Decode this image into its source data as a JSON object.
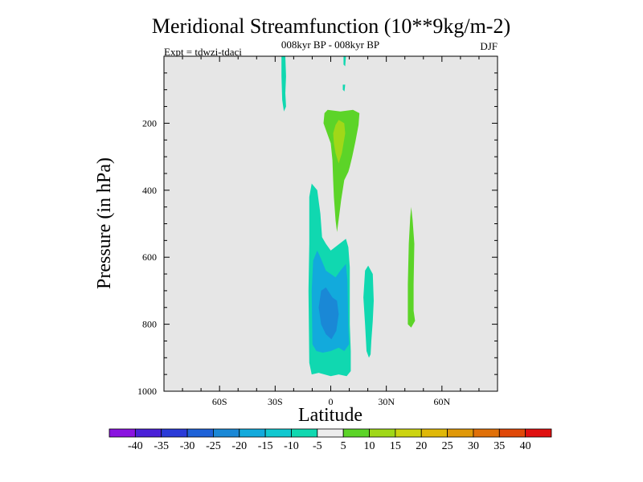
{
  "chart_data": {
    "type": "contour",
    "title": "Meridional Streamfunction (10**9kg/m-2)",
    "subtitle": "008kyr BP - 008kyr BP",
    "left_label": "Expt = tdwzi-tdaci",
    "right_label": "DJF",
    "xlabel": "Latitude",
    "ylabel": "Pressure (in hPa)",
    "xlim": [
      -90,
      90
    ],
    "ylim": [
      0,
      1000
    ],
    "y_inverted": true,
    "x_ticks": [
      {
        "value": -60,
        "label": "60S"
      },
      {
        "value": -30,
        "label": "30S"
      },
      {
        "value": 0,
        "label": "0"
      },
      {
        "value": 30,
        "label": "30N"
      },
      {
        "value": 60,
        "label": "60N"
      }
    ],
    "y_ticks": [
      {
        "value": 200,
        "label": "200"
      },
      {
        "value": 400,
        "label": "400"
      },
      {
        "value": 600,
        "label": "600"
      },
      {
        "value": 800,
        "label": "800"
      },
      {
        "value": 1000,
        "label": "1000"
      }
    ],
    "background_color": "#e6e6e6",
    "colorbar": {
      "labels": [
        "-40",
        "-35",
        "-30",
        "-25",
        "-20",
        "-15",
        "-10",
        "-5",
        "5",
        "10",
        "15",
        "20",
        "25",
        "30",
        "35",
        "40"
      ],
      "colors": [
        "#8a12e0",
        "#4a20d8",
        "#2a3ad8",
        "#1e62d8",
        "#1a88d6",
        "#12aadc",
        "#10c8d0",
        "#10d8b0",
        "#ececec",
        "#5cd428",
        "#a0d818",
        "#ccd410",
        "#e0b808",
        "#e09808",
        "#e07008",
        "#e04808",
        "#e01010"
      ]
    },
    "regions": [
      {
        "level": "-10",
        "color": "#10d8b0",
        "points": [
          [
            -26.6,
            0
          ],
          [
            -24.5,
            0
          ],
          [
            -24.1,
            60
          ],
          [
            -24.5,
            110
          ],
          [
            -24.1,
            150
          ],
          [
            -25.3,
            165
          ],
          [
            -26.2,
            130
          ],
          [
            -26.6,
            60
          ]
        ]
      },
      {
        "level": "-10",
        "color": "#10d8b0",
        "points": [
          [
            6.9,
            0
          ],
          [
            8.2,
            0
          ],
          [
            7.8,
            30
          ],
          [
            6.9,
            25
          ]
        ]
      },
      {
        "level": "-10",
        "color": "#10d8b0",
        "points": [
          [
            6.5,
            85
          ],
          [
            7.8,
            85
          ],
          [
            7.4,
            105
          ],
          [
            6.5,
            100
          ]
        ]
      },
      {
        "level": "-10",
        "color": "#10d8b0",
        "points": [
          [
            -11.6,
            420
          ],
          [
            -10.3,
            380
          ],
          [
            -7.3,
            400
          ],
          [
            -5.6,
            470
          ],
          [
            -4.7,
            540
          ],
          [
            -2.6,
            560
          ],
          [
            0.0,
            580
          ],
          [
            4.7,
            560
          ],
          [
            8.2,
            545
          ],
          [
            9.5,
            570
          ],
          [
            10.3,
            630
          ],
          [
            10.3,
            800
          ],
          [
            10.8,
            880
          ],
          [
            10.8,
            940
          ],
          [
            8.6,
            955
          ],
          [
            4.3,
            950
          ],
          [
            0.0,
            955
          ],
          [
            -6.5,
            945
          ],
          [
            -10.3,
            950
          ],
          [
            -11.6,
            915
          ],
          [
            -12.0,
            700
          ],
          [
            -11.6,
            560
          ]
        ]
      },
      {
        "level": "-15",
        "color": "#12aadc",
        "points": [
          [
            -7.3,
            580
          ],
          [
            -5.6,
            600
          ],
          [
            -2.6,
            640
          ],
          [
            2.6,
            660
          ],
          [
            5.2,
            640
          ],
          [
            8.2,
            620
          ],
          [
            9.0,
            670
          ],
          [
            9.5,
            810
          ],
          [
            9.9,
            860
          ],
          [
            7.3,
            880
          ],
          [
            4.3,
            870
          ],
          [
            0.0,
            880
          ],
          [
            -4.3,
            885
          ],
          [
            -7.7,
            880
          ],
          [
            -9.9,
            860
          ],
          [
            -10.3,
            700
          ],
          [
            -9.5,
            610
          ]
        ]
      },
      {
        "level": "-20",
        "color": "#1a88d6",
        "points": [
          [
            -5.2,
            700
          ],
          [
            -2.6,
            690
          ],
          [
            0.9,
            720
          ],
          [
            3.4,
            730
          ],
          [
            4.3,
            770
          ],
          [
            3.0,
            820
          ],
          [
            0.4,
            845
          ],
          [
            -2.6,
            830
          ],
          [
            -5.2,
            800
          ],
          [
            -6.5,
            750
          ]
        ]
      },
      {
        "level": "-10",
        "color": "#10d8b0",
        "points": [
          [
            18.5,
            640
          ],
          [
            20.2,
            625
          ],
          [
            22.7,
            650
          ],
          [
            23.2,
            730
          ],
          [
            22.7,
            790
          ],
          [
            21.9,
            850
          ],
          [
            21.5,
            890
          ],
          [
            20.6,
            900
          ],
          [
            19.3,
            880
          ],
          [
            18.5,
            800
          ],
          [
            17.6,
            720
          ]
        ]
      },
      {
        "level": "10",
        "color": "#5cd428",
        "points": [
          [
            -3.9,
            200
          ],
          [
            -3.4,
            170
          ],
          [
            -1.7,
            160
          ],
          [
            5.2,
            165
          ],
          [
            12.0,
            160
          ],
          [
            15.5,
            170
          ],
          [
            15.0,
            205
          ],
          [
            13.3,
            255
          ],
          [
            11.6,
            300
          ],
          [
            10.3,
            330
          ],
          [
            9.5,
            345
          ],
          [
            7.3,
            370
          ],
          [
            5.6,
            430
          ],
          [
            4.7,
            470
          ],
          [
            3.4,
            525
          ],
          [
            2.6,
            490
          ],
          [
            1.7,
            420
          ],
          [
            1.3,
            370
          ],
          [
            0.9,
            310
          ],
          [
            0.0,
            260
          ],
          [
            -1.3,
            240
          ],
          [
            -2.6,
            220
          ]
        ]
      },
      {
        "level": "15",
        "color": "#a0d818",
        "points": [
          [
            1.3,
            230
          ],
          [
            2.6,
            205
          ],
          [
            4.3,
            190
          ],
          [
            7.3,
            200
          ],
          [
            7.8,
            230
          ],
          [
            6.0,
            290
          ],
          [
            4.3,
            320
          ],
          [
            2.6,
            290
          ],
          [
            1.7,
            260
          ]
        ]
      },
      {
        "level": "10",
        "color": "#5cd428",
        "points": [
          [
            42.9,
            480
          ],
          [
            43.4,
            450
          ],
          [
            44.2,
            490
          ],
          [
            45.1,
            560
          ],
          [
            44.7,
            680
          ],
          [
            44.7,
            760
          ],
          [
            45.5,
            790
          ],
          [
            43.4,
            810
          ],
          [
            41.6,
            800
          ],
          [
            41.6,
            680
          ],
          [
            42.1,
            560
          ]
        ]
      }
    ]
  }
}
